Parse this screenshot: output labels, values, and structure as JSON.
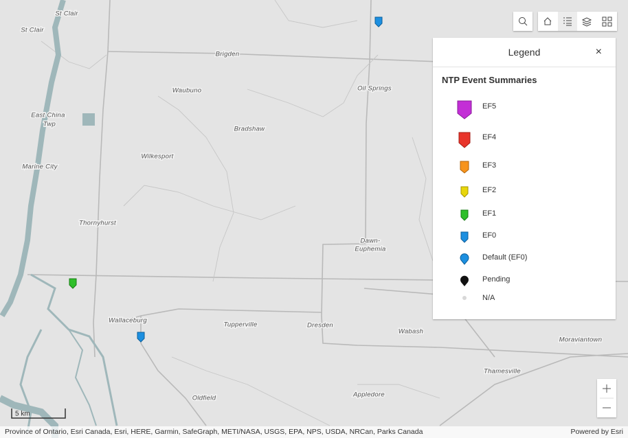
{
  "map": {
    "places": [
      "St Clair",
      "St Clair",
      "Brigden",
      "Waubuno",
      "Oil Springs",
      "East China",
      "Twp",
      "Bradshaw",
      "Wilkesport",
      "Marine City",
      "Thornyhurst",
      "Dawn-",
      "Euphemia",
      "Wallaceburg",
      "Tupperville",
      "Dresden",
      "Wabash",
      "Moraviantown",
      "Thamesville",
      "Appledore",
      "Oldfield"
    ],
    "scale": "5 km",
    "attribution": "Province of Ontario, Esri Canada, Esri, HERE, Garmin, SafeGraph, METI/NASA, USGS, EPA, NPS, USDA, NRCan, Parks Canada",
    "powered_by": "Powered by Esri"
  },
  "legend": {
    "title": "Legend",
    "layer_title": "NTP Event Summaries",
    "items": [
      "EF5",
      "EF4",
      "EF3",
      "EF2",
      "EF1",
      "EF0",
      "Default (EF0)",
      "Pending",
      "N/A"
    ]
  }
}
